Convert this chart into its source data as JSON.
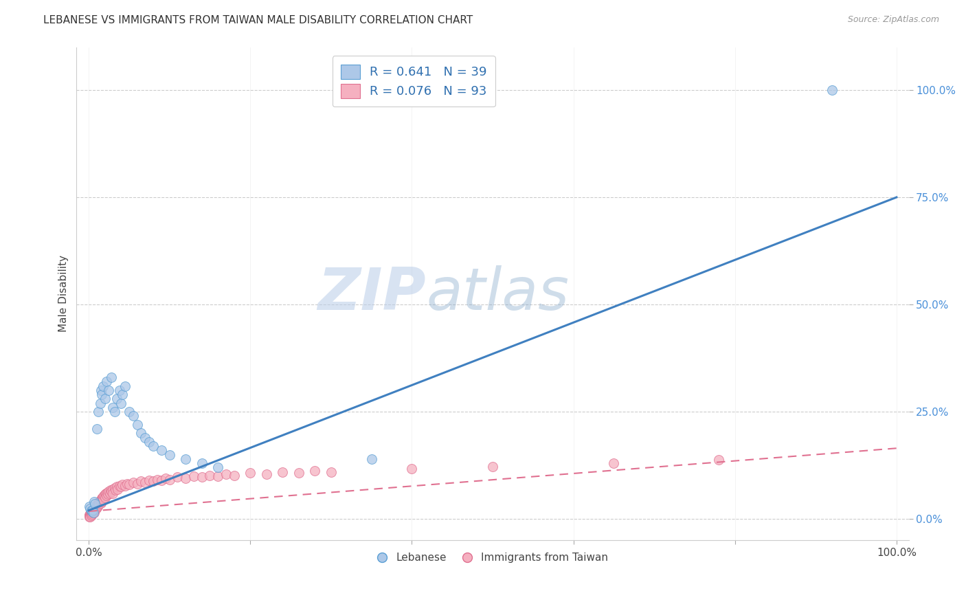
{
  "title": "LEBANESE VS IMMIGRANTS FROM TAIWAN MALE DISABILITY CORRELATION CHART",
  "source": "Source: ZipAtlas.com",
  "ylabel": "Male Disability",
  "xlabel": "",
  "background_color": "#ffffff",
  "title_fontsize": 11,
  "watermark_zip": "ZIP",
  "watermark_atlas": "atlas",
  "lebanese_x": [
    0.001,
    0.002,
    0.003,
    0.004,
    0.005,
    0.006,
    0.007,
    0.008,
    0.01,
    0.012,
    0.014,
    0.015,
    0.016,
    0.018,
    0.02,
    0.022,
    0.025,
    0.028,
    0.03,
    0.032,
    0.035,
    0.038,
    0.04,
    0.042,
    0.045,
    0.05,
    0.055,
    0.06,
    0.065,
    0.07,
    0.075,
    0.08,
    0.09,
    0.1,
    0.12,
    0.14,
    0.16,
    0.35,
    0.92
  ],
  "lebanese_y": [
    0.03,
    0.025,
    0.02,
    0.018,
    0.022,
    0.015,
    0.04,
    0.035,
    0.21,
    0.25,
    0.27,
    0.3,
    0.29,
    0.31,
    0.28,
    0.32,
    0.3,
    0.33,
    0.26,
    0.25,
    0.28,
    0.3,
    0.27,
    0.29,
    0.31,
    0.25,
    0.24,
    0.22,
    0.2,
    0.19,
    0.18,
    0.17,
    0.16,
    0.15,
    0.14,
    0.13,
    0.12,
    0.14,
    1.0
  ],
  "taiwan_x": [
    0.001,
    0.001,
    0.001,
    0.002,
    0.002,
    0.002,
    0.002,
    0.003,
    0.003,
    0.003,
    0.003,
    0.004,
    0.004,
    0.004,
    0.005,
    0.005,
    0.005,
    0.006,
    0.006,
    0.007,
    0.007,
    0.007,
    0.008,
    0.008,
    0.009,
    0.009,
    0.01,
    0.01,
    0.011,
    0.011,
    0.012,
    0.012,
    0.013,
    0.013,
    0.014,
    0.015,
    0.015,
    0.016,
    0.016,
    0.017,
    0.018,
    0.018,
    0.019,
    0.02,
    0.02,
    0.021,
    0.022,
    0.023,
    0.024,
    0.025,
    0.026,
    0.027,
    0.028,
    0.03,
    0.03,
    0.032,
    0.033,
    0.035,
    0.036,
    0.038,
    0.04,
    0.042,
    0.045,
    0.048,
    0.05,
    0.055,
    0.06,
    0.065,
    0.07,
    0.075,
    0.08,
    0.085,
    0.09,
    0.095,
    0.1,
    0.11,
    0.12,
    0.13,
    0.14,
    0.15,
    0.16,
    0.17,
    0.18,
    0.2,
    0.22,
    0.24,
    0.26,
    0.28,
    0.3,
    0.4,
    0.5,
    0.65,
    0.78
  ],
  "taiwan_y": [
    0.01,
    0.008,
    0.006,
    0.012,
    0.009,
    0.007,
    0.005,
    0.015,
    0.012,
    0.01,
    0.008,
    0.018,
    0.015,
    0.012,
    0.02,
    0.018,
    0.015,
    0.022,
    0.018,
    0.025,
    0.02,
    0.015,
    0.028,
    0.022,
    0.03,
    0.025,
    0.032,
    0.028,
    0.035,
    0.03,
    0.038,
    0.032,
    0.04,
    0.035,
    0.042,
    0.045,
    0.038,
    0.048,
    0.04,
    0.05,
    0.052,
    0.045,
    0.055,
    0.058,
    0.05,
    0.06,
    0.055,
    0.062,
    0.058,
    0.065,
    0.06,
    0.068,
    0.065,
    0.07,
    0.06,
    0.072,
    0.068,
    0.075,
    0.07,
    0.078,
    0.075,
    0.08,
    0.078,
    0.082,
    0.08,
    0.085,
    0.082,
    0.088,
    0.085,
    0.09,
    0.088,
    0.092,
    0.09,
    0.095,
    0.092,
    0.098,
    0.095,
    0.1,
    0.098,
    0.102,
    0.1,
    0.105,
    0.102,
    0.108,
    0.105,
    0.11,
    0.108,
    0.112,
    0.11,
    0.118,
    0.122,
    0.13,
    0.138
  ],
  "lebanese_color": "#adc8e8",
  "taiwan_color": "#f5b0c0",
  "lebanese_edge": "#5a9fd4",
  "taiwan_edge": "#e07090",
  "blue_line_color": "#4080c0",
  "pink_line_color": "#e07090",
  "R_lebanese": 0.641,
  "N_lebanese": 39,
  "R_taiwan": 0.076,
  "N_taiwan": 93,
  "legend_label_lebanese": "Lebanese",
  "legend_label_taiwan": "Immigrants from Taiwan",
  "ytick_labels": [
    "0.0%",
    "25.0%",
    "50.0%",
    "75.0%",
    "100.0%"
  ],
  "ytick_values": [
    0.0,
    0.25,
    0.5,
    0.75,
    1.0
  ],
  "xtick_labels": [
    "0.0%",
    "",
    "",
    "",
    "",
    "100.0%"
  ],
  "xtick_values": [
    0.0,
    0.2,
    0.4,
    0.6,
    0.8,
    1.0
  ],
  "blue_line_x0": 0.0,
  "blue_line_y0": 0.02,
  "blue_line_x1": 1.0,
  "blue_line_y1": 0.75,
  "pink_line_x0": 0.0,
  "pink_line_y0": 0.018,
  "pink_line_x1": 1.0,
  "pink_line_y1": 0.165
}
